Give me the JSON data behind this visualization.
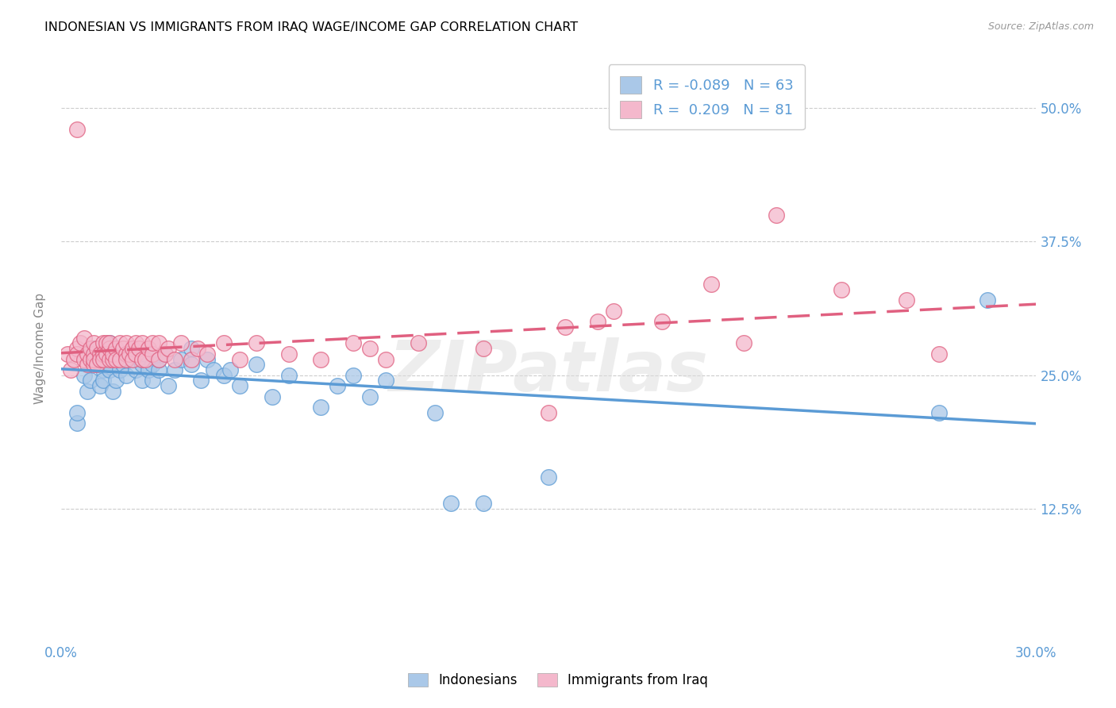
{
  "title": "INDONESIAN VS IMMIGRANTS FROM IRAQ WAGE/INCOME GAP CORRELATION CHART",
  "source": "Source: ZipAtlas.com",
  "ylabel": "Wage/Income Gap",
  "xlabel_indonesian": "Indonesians",
  "xlabel_iraq": "Immigrants from Iraq",
  "xmin": 0.0,
  "xmax": 0.3,
  "ymin": 0.0,
  "ymax": 0.55,
  "yticks": [
    0.125,
    0.25,
    0.375,
    0.5
  ],
  "ytick_labels": [
    "12.5%",
    "25.0%",
    "37.5%",
    "50.0%"
  ],
  "xticks": [
    0.0,
    0.05,
    0.1,
    0.15,
    0.2,
    0.25,
    0.3
  ],
  "xtick_labels": [
    "0.0%",
    "",
    "",
    "",
    "",
    "",
    "30.0%"
  ],
  "legend_r_indonesian": "R = -0.089",
  "legend_n_indonesian": "N = 63",
  "legend_r_iraq": "R =  0.209",
  "legend_n_iraq": "N = 81",
  "color_indonesian": "#aac8e8",
  "color_iraq": "#f4b8cc",
  "line_color_indonesian": "#5B9BD5",
  "line_color_iraq": "#e06080",
  "watermark": "ZIPatlas",
  "indonesian_x": [
    0.005,
    0.005,
    0.007,
    0.008,
    0.009,
    0.01,
    0.01,
    0.01,
    0.012,
    0.012,
    0.013,
    0.013,
    0.014,
    0.015,
    0.015,
    0.015,
    0.015,
    0.016,
    0.017,
    0.018,
    0.018,
    0.019,
    0.02,
    0.02,
    0.02,
    0.022,
    0.022,
    0.023,
    0.025,
    0.025,
    0.025,
    0.026,
    0.027,
    0.028,
    0.028,
    0.03,
    0.03,
    0.032,
    0.033,
    0.035,
    0.037,
    0.04,
    0.04,
    0.043,
    0.045,
    0.047,
    0.05,
    0.052,
    0.055,
    0.06,
    0.065,
    0.07,
    0.08,
    0.085,
    0.09,
    0.095,
    0.1,
    0.115,
    0.12,
    0.13,
    0.15,
    0.27,
    0.285
  ],
  "indonesian_y": [
    0.205,
    0.215,
    0.25,
    0.235,
    0.245,
    0.27,
    0.265,
    0.275,
    0.26,
    0.24,
    0.255,
    0.245,
    0.275,
    0.255,
    0.26,
    0.27,
    0.28,
    0.235,
    0.245,
    0.27,
    0.255,
    0.26,
    0.265,
    0.27,
    0.25,
    0.265,
    0.275,
    0.255,
    0.26,
    0.265,
    0.245,
    0.27,
    0.255,
    0.26,
    0.245,
    0.255,
    0.265,
    0.27,
    0.24,
    0.255,
    0.265,
    0.275,
    0.26,
    0.245,
    0.265,
    0.255,
    0.25,
    0.255,
    0.24,
    0.26,
    0.23,
    0.25,
    0.22,
    0.24,
    0.25,
    0.23,
    0.245,
    0.215,
    0.13,
    0.13,
    0.155,
    0.215,
    0.32
  ],
  "iraq_x": [
    0.002,
    0.003,
    0.004,
    0.005,
    0.005,
    0.006,
    0.007,
    0.007,
    0.008,
    0.008,
    0.009,
    0.009,
    0.01,
    0.01,
    0.01,
    0.01,
    0.011,
    0.011,
    0.012,
    0.012,
    0.013,
    0.013,
    0.013,
    0.014,
    0.014,
    0.015,
    0.015,
    0.015,
    0.016,
    0.016,
    0.017,
    0.017,
    0.018,
    0.018,
    0.019,
    0.02,
    0.02,
    0.02,
    0.021,
    0.022,
    0.022,
    0.023,
    0.023,
    0.024,
    0.025,
    0.025,
    0.026,
    0.027,
    0.028,
    0.028,
    0.03,
    0.03,
    0.032,
    0.033,
    0.035,
    0.037,
    0.04,
    0.042,
    0.045,
    0.05,
    0.055,
    0.06,
    0.07,
    0.08,
    0.09,
    0.095,
    0.1,
    0.11,
    0.13,
    0.15,
    0.155,
    0.165,
    0.17,
    0.185,
    0.2,
    0.21,
    0.22,
    0.24,
    0.26,
    0.27,
    0.005
  ],
  "iraq_y": [
    0.27,
    0.255,
    0.265,
    0.275,
    0.27,
    0.28,
    0.265,
    0.285,
    0.26,
    0.27,
    0.265,
    0.275,
    0.26,
    0.27,
    0.28,
    0.265,
    0.275,
    0.26,
    0.27,
    0.265,
    0.28,
    0.27,
    0.265,
    0.28,
    0.27,
    0.265,
    0.275,
    0.28,
    0.265,
    0.27,
    0.275,
    0.265,
    0.28,
    0.265,
    0.275,
    0.27,
    0.265,
    0.28,
    0.27,
    0.275,
    0.265,
    0.28,
    0.27,
    0.275,
    0.265,
    0.28,
    0.265,
    0.275,
    0.27,
    0.28,
    0.265,
    0.28,
    0.27,
    0.275,
    0.265,
    0.28,
    0.265,
    0.275,
    0.27,
    0.28,
    0.265,
    0.28,
    0.27,
    0.265,
    0.28,
    0.275,
    0.265,
    0.28,
    0.275,
    0.215,
    0.295,
    0.3,
    0.31,
    0.3,
    0.335,
    0.28,
    0.4,
    0.33,
    0.32,
    0.27,
    0.48
  ]
}
